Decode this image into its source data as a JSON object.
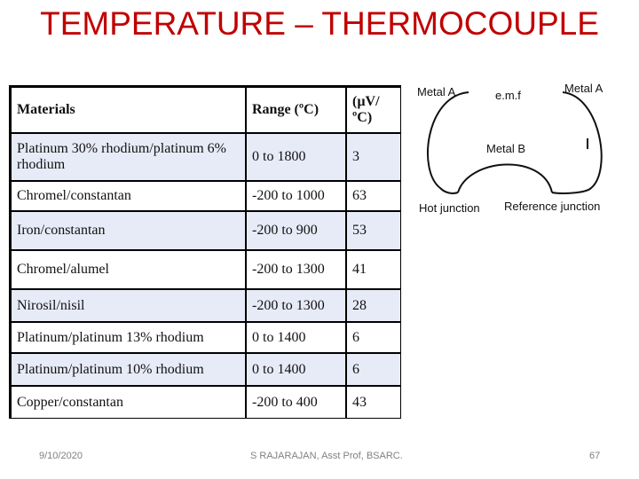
{
  "slide": {
    "title": "TEMPERATURE – THERMOCOUPLE",
    "title_color": "#c00000"
  },
  "table": {
    "headers": [
      "Materials",
      "Range (ºC)",
      "(µV/ºC)"
    ],
    "rows": [
      {
        "material": "Platinum 30%  rhodium/platinum 6% rhodium",
        "range": "0 to 1800",
        "sensitivity": "3"
      },
      {
        "material": "Chromel/constantan",
        "range": "-200 to 1000",
        "sensitivity": "63"
      },
      {
        "material": "Iron/constantan",
        "range": "-200 to 900",
        "sensitivity": "53"
      },
      {
        "material": "Chromel/alumel",
        "range": "-200 to 1300",
        "sensitivity": "41"
      },
      {
        "material": "Nirosil/nisil",
        "range": "-200 to 1300",
        "sensitivity": "28"
      },
      {
        "material": "Platinum/platinum 13% rhodium",
        "range": "0 to 1400",
        "sensitivity": "6"
      },
      {
        "material": "Platinum/platinum 10% rhodium",
        "range": "0 to 1400",
        "sensitivity": "6"
      },
      {
        "material": "Copper/constantan",
        "range": "-200 to 400",
        "sensitivity": "43"
      }
    ],
    "stripe_color": "#e7ebf7"
  },
  "diagram": {
    "metal_a_left": "Metal A",
    "emf": "e.m.f",
    "metal_a_right": "Metal A",
    "metal_b": "Metal B",
    "hot_junction": "Hot junction",
    "reference_junction": "Reference junction"
  },
  "footer": {
    "date": "9/10/2020",
    "author": "S RAJARAJAN, Asst Prof, BSARC.",
    "page": "67"
  }
}
